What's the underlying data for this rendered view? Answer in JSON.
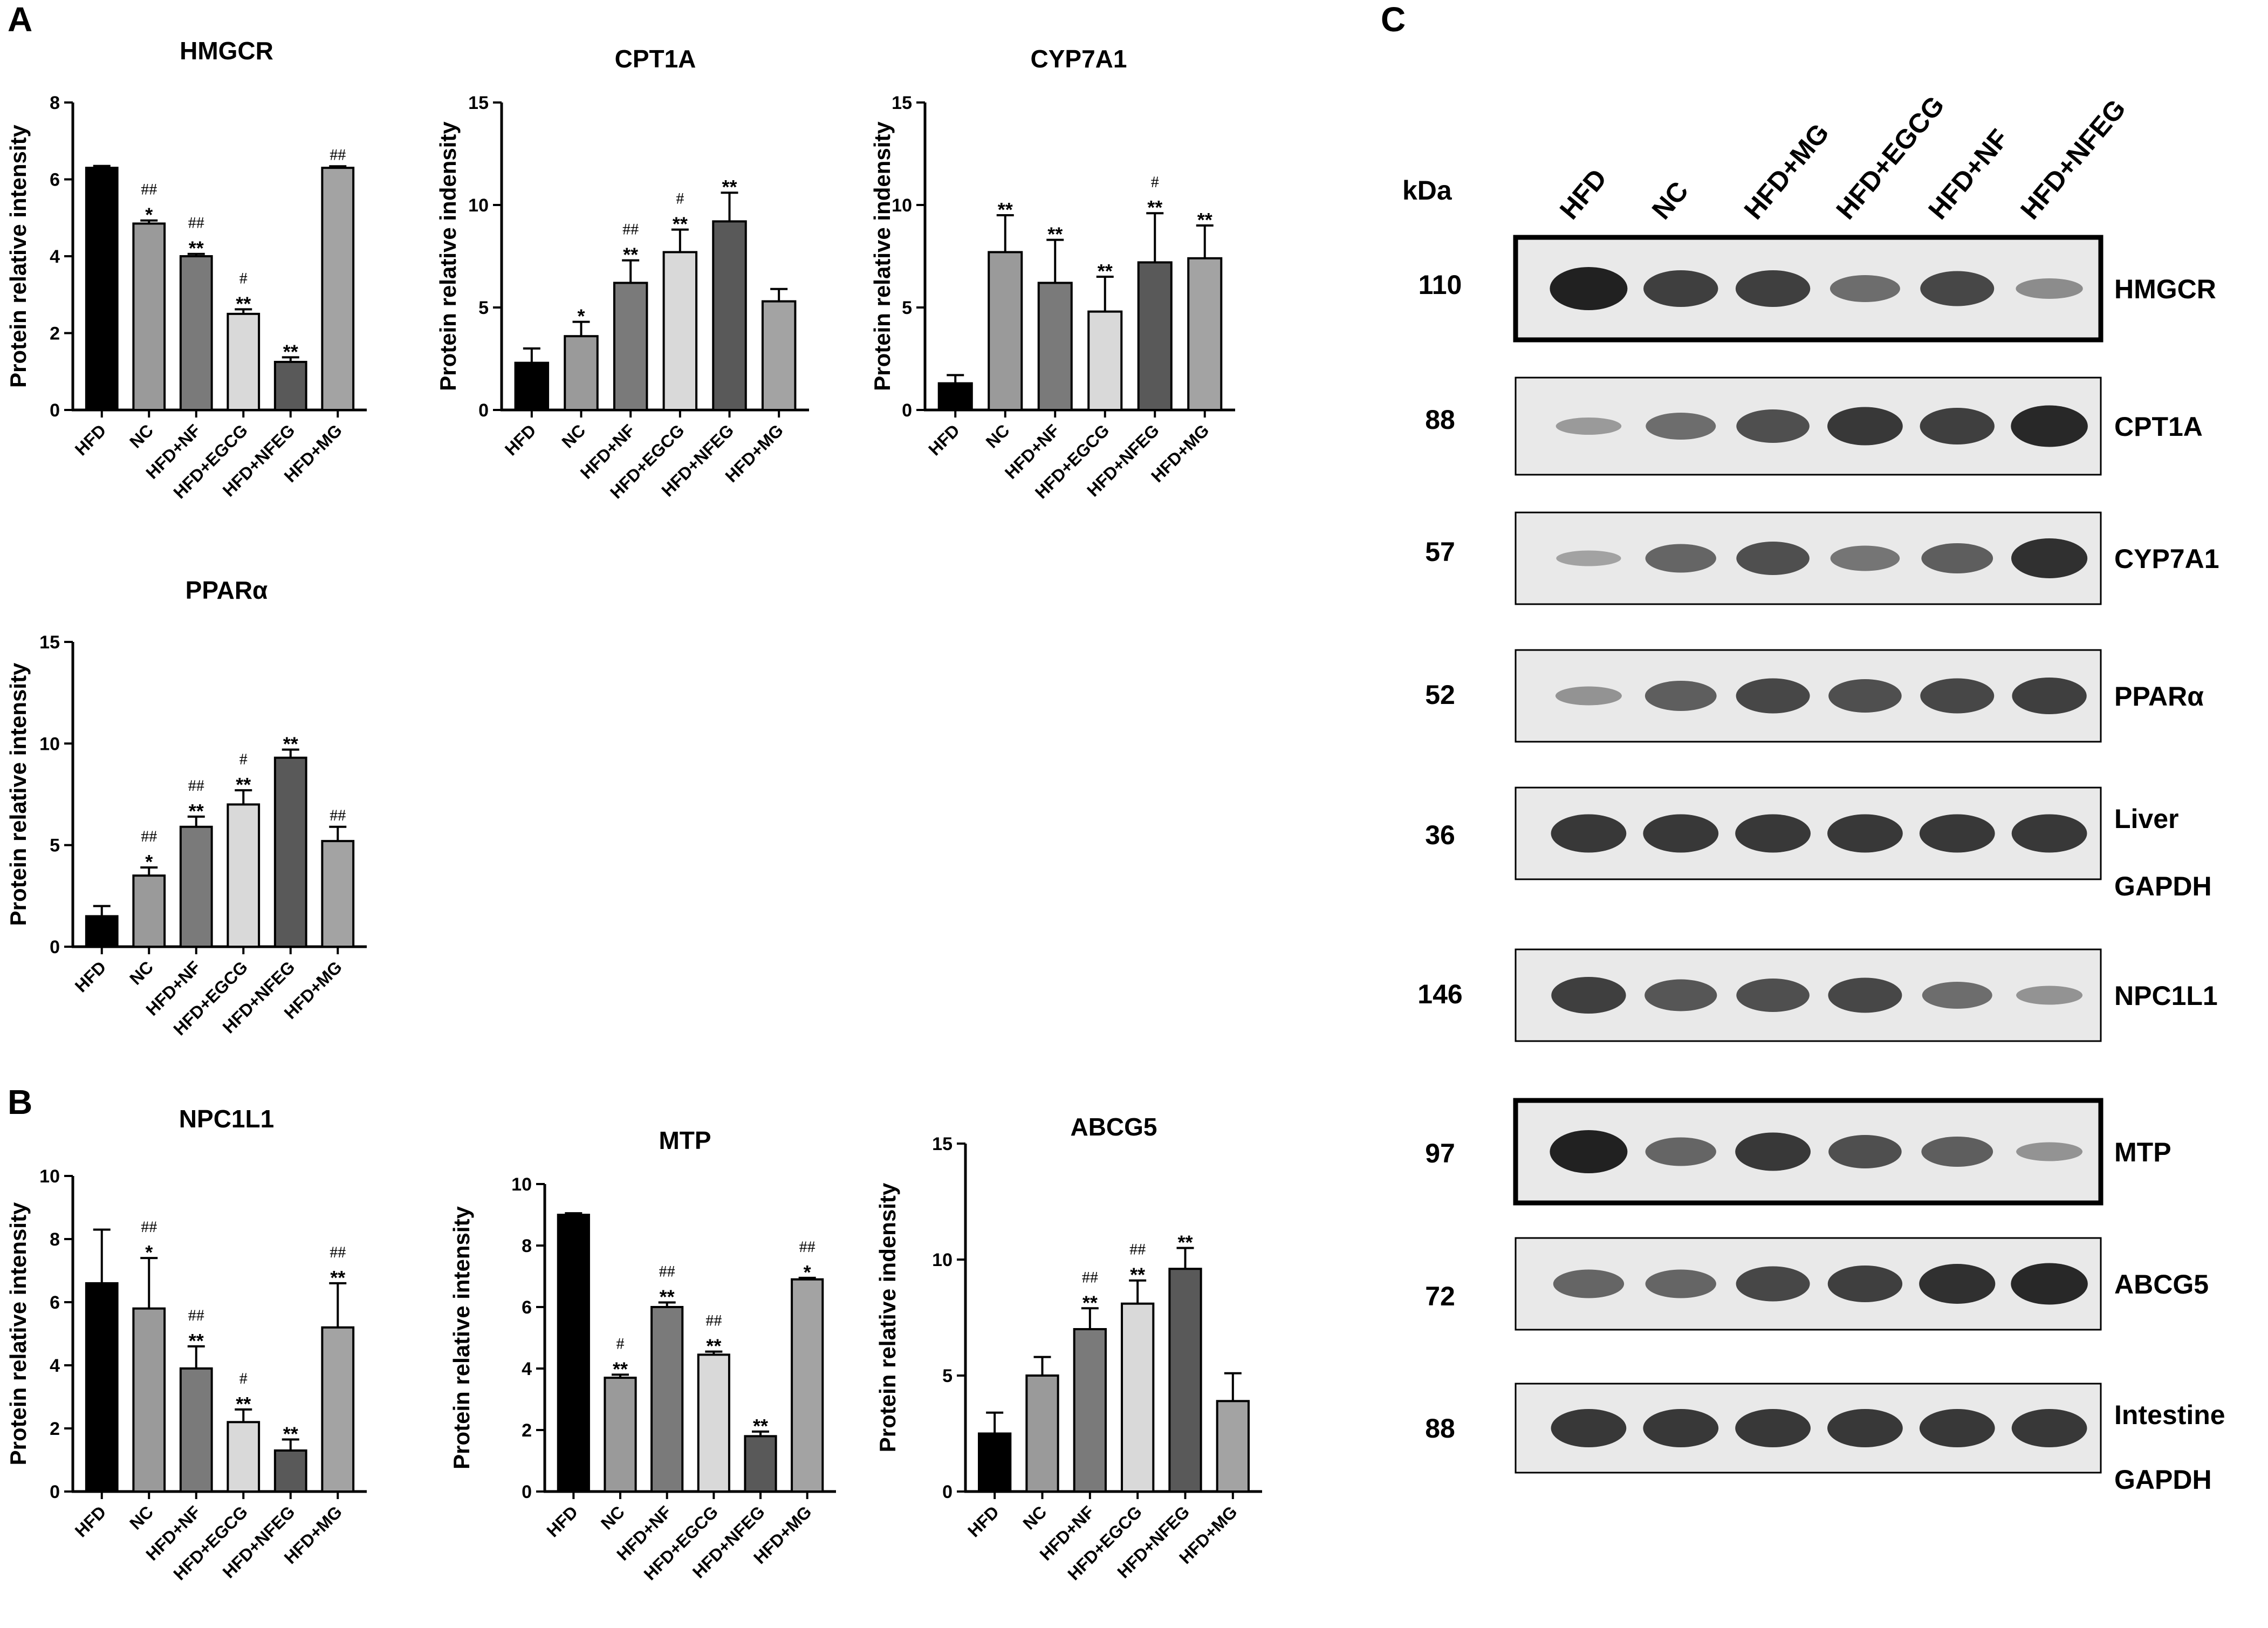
{
  "panels": {
    "a": "A",
    "b": "B",
    "c": "C"
  },
  "colors": [
    "#000000",
    "#9a9a9a",
    "#7a7a7a",
    "#d9d9d9",
    "#595959",
    "#a3a3a3"
  ],
  "chart_data": [
    {
      "type": "bar",
      "title": "HMGCR",
      "ylabel": "Protein relative intensity",
      "categories": [
        "HFD",
        "NC",
        "HFD+NF",
        "HFD+EGCG",
        "HFD+NFEG",
        "HFD+MG"
      ],
      "values": [
        6.3,
        4.85,
        4.0,
        2.5,
        1.25,
        6.3
      ],
      "errors": [
        0.05,
        0.08,
        0.06,
        0.12,
        0.12,
        0.04
      ],
      "stars": [
        "",
        "*",
        "**",
        "**",
        "**",
        ""
      ],
      "hashes": [
        "",
        "##",
        "##",
        "#",
        "",
        "##"
      ],
      "ylim": [
        0,
        8
      ],
      "yticks": [
        0,
        2,
        4,
        6,
        8
      ]
    },
    {
      "type": "bar",
      "title": "CPT1A",
      "ylabel": "Protein relative indensity",
      "categories": [
        "HFD",
        "NC",
        "HFD+NF",
        "HFD+EGCG",
        "HFD+NFEG",
        "HFD+MG"
      ],
      "values": [
        2.3,
        3.6,
        6.2,
        7.7,
        9.2,
        5.3
      ],
      "errors": [
        0.7,
        0.7,
        1.1,
        1.1,
        1.4,
        0.6
      ],
      "stars": [
        "",
        "*",
        "**",
        "**",
        "**",
        ""
      ],
      "hashes": [
        "",
        "",
        "##",
        "#",
        "",
        ""
      ],
      "ylim": [
        0,
        15
      ],
      "yticks": [
        0,
        5,
        10,
        15
      ]
    },
    {
      "type": "bar",
      "title": "CYP7A1",
      "ylabel": "Protein relative indensity",
      "categories": [
        "HFD",
        "NC",
        "HFD+NF",
        "HFD+EGCG",
        "HFD+NFEG",
        "HFD+MG"
      ],
      "values": [
        1.3,
        7.7,
        6.2,
        4.8,
        7.2,
        7.4
      ],
      "errors": [
        0.4,
        1.8,
        2.1,
        1.7,
        2.4,
        1.6
      ],
      "stars": [
        "",
        "**",
        "**",
        "**",
        "**",
        "**"
      ],
      "hashes": [
        "",
        "",
        "",
        "",
        "#",
        ""
      ],
      "ylim": [
        0,
        15
      ],
      "yticks": [
        0,
        5,
        10,
        15
      ]
    },
    {
      "type": "bar",
      "title": "PPARα",
      "ylabel": "Protein relative intensity",
      "categories": [
        "HFD",
        "NC",
        "HFD+NF",
        "HFD+EGCG",
        "HFD+NFEG",
        "HFD+MG"
      ],
      "values": [
        1.5,
        3.5,
        5.9,
        7.0,
        9.3,
        5.2
      ],
      "errors": [
        0.5,
        0.4,
        0.5,
        0.7,
        0.4,
        0.7
      ],
      "stars": [
        "",
        "*",
        "**",
        "**",
        "**",
        ""
      ],
      "hashes": [
        "",
        "##",
        "##",
        "#",
        "",
        "##"
      ],
      "ylim": [
        0,
        15
      ],
      "yticks": [
        0,
        5,
        10,
        15
      ]
    },
    {
      "type": "bar",
      "title": "NPC1L1",
      "ylabel": "Protein relative intensity",
      "categories": [
        "HFD",
        "NC",
        "HFD+NF",
        "HFD+EGCG",
        "HFD+NFEG",
        "HFD+MG"
      ],
      "values": [
        6.6,
        5.8,
        3.9,
        2.2,
        1.3,
        5.2
      ],
      "errors": [
        1.7,
        1.6,
        0.7,
        0.4,
        0.35,
        1.4
      ],
      "stars": [
        "",
        "*",
        "**",
        "**",
        "**",
        "**"
      ],
      "hashes": [
        "",
        "##",
        "##",
        "#",
        "",
        "##"
      ],
      "ylim": [
        0,
        10
      ],
      "yticks": [
        0,
        2,
        4,
        6,
        8,
        10
      ]
    },
    {
      "type": "bar",
      "title": "MTP",
      "ylabel": "Protein relative intensity",
      "categories": [
        "HFD",
        "NC",
        "HFD+NF",
        "HFD+EGCG",
        "HFD+NFEG",
        "HFD+MG"
      ],
      "values": [
        9.0,
        3.7,
        6.0,
        4.45,
        1.8,
        6.9
      ],
      "errors": [
        0.05,
        0.1,
        0.15,
        0.1,
        0.15,
        0.05
      ],
      "stars": [
        "",
        "**",
        "**",
        "**",
        "**",
        "*"
      ],
      "hashes": [
        "",
        "#",
        "##",
        "##",
        "",
        "##"
      ],
      "ylim": [
        0,
        10
      ],
      "yticks": [
        0,
        2,
        4,
        6,
        8,
        10
      ]
    },
    {
      "type": "bar",
      "title": "ABCG5",
      "ylabel": "Protein relative indensity",
      "categories": [
        "HFD",
        "NC",
        "HFD+NF",
        "HFD+EGCG",
        "HFD+NFEG",
        "HFD+MG"
      ],
      "values": [
        2.5,
        5.0,
        7.0,
        8.1,
        9.6,
        3.9
      ],
      "errors": [
        0.9,
        0.8,
        0.9,
        1.0,
        0.9,
        1.2
      ],
      "stars": [
        "",
        "",
        "**",
        "**",
        "**",
        ""
      ],
      "hashes": [
        "",
        "",
        "##",
        "##",
        "",
        ""
      ],
      "ylim": [
        0,
        15
      ],
      "yticks": [
        0,
        5,
        10,
        15
      ]
    }
  ],
  "western_blot": {
    "kda_header": "kDa",
    "lanes": [
      "HFD",
      "NC",
      "HFD+MG",
      "HFD+EGCG",
      "HFD+NF",
      "HFD+NFEG"
    ],
    "rows": [
      {
        "kda": "110",
        "label": "HMGCR",
        "intensity": [
          1.0,
          0.8,
          0.8,
          0.5,
          0.75,
          0.3
        ]
      },
      {
        "kda": "88",
        "label": "CPT1A",
        "intensity": [
          0.2,
          0.5,
          0.7,
          0.85,
          0.8,
          0.95
        ]
      },
      {
        "kda": "57",
        "label": "CYP7A1",
        "intensity": [
          0.15,
          0.55,
          0.7,
          0.45,
          0.6,
          0.9
        ]
      },
      {
        "kda": "52",
        "label": "PPARα",
        "intensity": [
          0.25,
          0.6,
          0.75,
          0.7,
          0.75,
          0.8
        ]
      },
      {
        "kda": "36",
        "label": "Liver",
        "label2": "GAPDH",
        "intensity": [
          0.85,
          0.85,
          0.85,
          0.85,
          0.85,
          0.85
        ]
      },
      {
        "kda": "146",
        "label": "NPC1L1",
        "intensity": [
          0.8,
          0.65,
          0.7,
          0.75,
          0.5,
          0.25
        ]
      },
      {
        "kda": "97",
        "label": "MTP",
        "intensity": [
          1.0,
          0.55,
          0.85,
          0.7,
          0.6,
          0.25
        ]
      },
      {
        "kda": "72",
        "label": "ABCG5",
        "intensity": [
          0.55,
          0.55,
          0.75,
          0.8,
          0.9,
          0.95
        ]
      },
      {
        "kda": "88",
        "label": "Intestine",
        "label2": "GAPDH",
        "intensity": [
          0.85,
          0.85,
          0.85,
          0.85,
          0.85,
          0.85
        ]
      }
    ]
  }
}
